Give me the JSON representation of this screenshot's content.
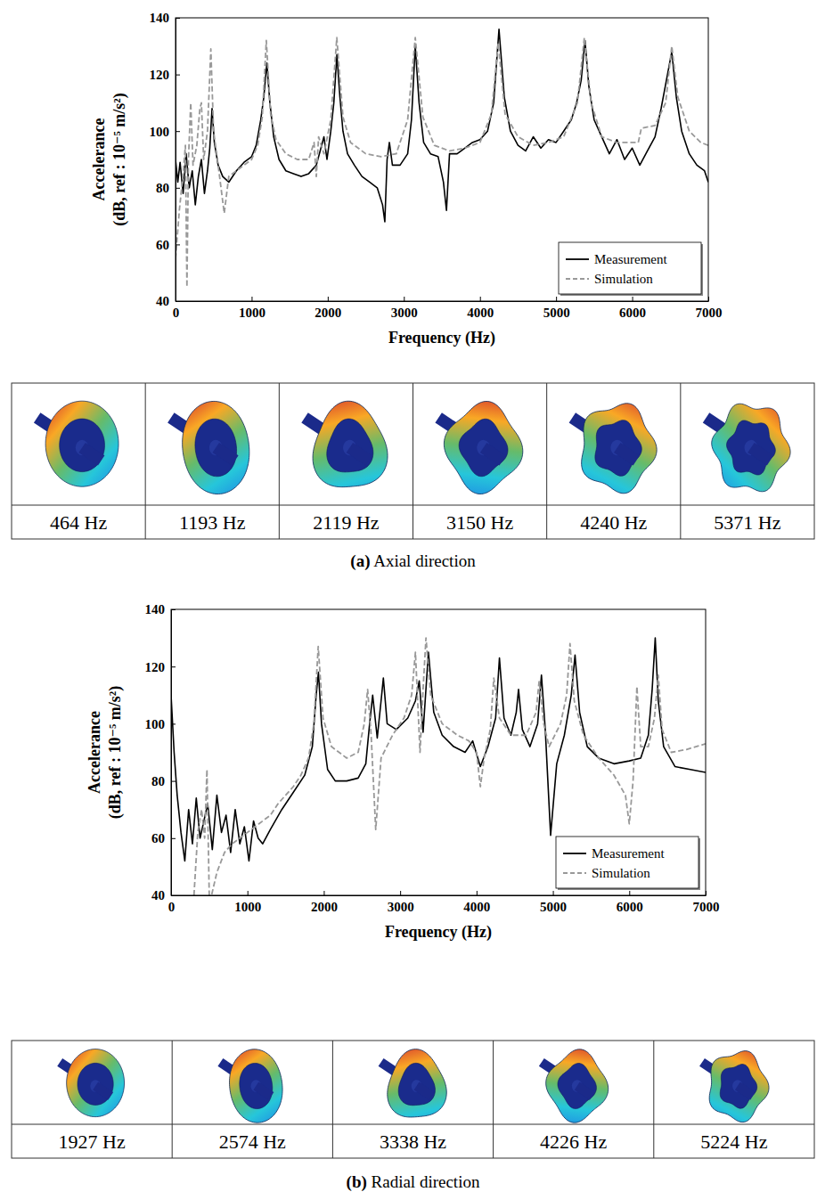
{
  "chart_data": [
    {
      "type": "line",
      "xlabel": "Frequency (Hz)",
      "ylabel": [
        "Accelerance",
        "(dB, ref : 10⁻⁵ m/s²)"
      ],
      "xlim": [
        0,
        7000
      ],
      "xticks": [
        0,
        1000,
        2000,
        3000,
        4000,
        5000,
        6000,
        7000
      ],
      "ylim": [
        40,
        140
      ],
      "yticks": [
        40,
        60,
        80,
        100,
        120,
        140
      ],
      "grid": false,
      "legend": "lower right",
      "series": [
        {
          "name": "Measurement",
          "color": "#000000",
          "line_style": "solid",
          "x": [
            0,
            30,
            60,
            100,
            140,
            180,
            220,
            260,
            300,
            340,
            380,
            420,
            450,
            480,
            510,
            560,
            620,
            700,
            800,
            900,
            1000,
            1060,
            1120,
            1160,
            1200,
            1240,
            1290,
            1360,
            1450,
            1550,
            1650,
            1750,
            1850,
            1900,
            1950,
            1990,
            2040,
            2080,
            2120,
            2160,
            2200,
            2260,
            2350,
            2450,
            2550,
            2650,
            2720,
            2750,
            2780,
            2810,
            2850,
            2950,
            3050,
            3100,
            3150,
            3200,
            3260,
            3350,
            3450,
            3520,
            3560,
            3600,
            3700,
            3800,
            3900,
            4000,
            4100,
            4180,
            4250,
            4320,
            4400,
            4500,
            4600,
            4700,
            4800,
            4900,
            5000,
            5100,
            5200,
            5270,
            5330,
            5380,
            5430,
            5500,
            5600,
            5700,
            5800,
            5900,
            6000,
            6100,
            6200,
            6300,
            6380,
            6450,
            6520,
            6580,
            6650,
            6750,
            6850,
            6950,
            7000
          ],
          "values": [
            90,
            82,
            89,
            78,
            92,
            80,
            86,
            74,
            84,
            90,
            78,
            86,
            94,
            108,
            96,
            88,
            84,
            82,
            86,
            89,
            91,
            95,
            104,
            112,
            124,
            110,
            98,
            90,
            86,
            85,
            84,
            85,
            88,
            93,
            98,
            90,
            100,
            110,
            127,
            112,
            100,
            92,
            88,
            84,
            82,
            80,
            74,
            68,
            90,
            96,
            88,
            88,
            92,
            104,
            130,
            110,
            96,
            92,
            91,
            82,
            72,
            92,
            92,
            94,
            96,
            97,
            100,
            110,
            136,
            112,
            100,
            95,
            93,
            98,
            94,
            97,
            96,
            100,
            104,
            110,
            118,
            132,
            116,
            104,
            98,
            92,
            97,
            90,
            94,
            88,
            93,
            98,
            108,
            118,
            128,
            112,
            100,
            92,
            88,
            86,
            82
          ]
        },
        {
          "name": "Simulation",
          "color": "#999999",
          "line_style": "dashed",
          "x": [
            0,
            50,
            100,
            130,
            150,
            170,
            200,
            230,
            280,
            320,
            340,
            370,
            420,
            464,
            500,
            560,
            640,
            700,
            800,
            900,
            1000,
            1080,
            1140,
            1193,
            1250,
            1320,
            1450,
            1600,
            1750,
            1820,
            1850,
            1880,
            1950,
            2040,
            2119,
            2200,
            2300,
            2500,
            2700,
            2900,
            3050,
            3150,
            3250,
            3400,
            3600,
            3800,
            4000,
            4150,
            4240,
            4330,
            4500,
            4700,
            4900,
            5100,
            5280,
            5371,
            5460,
            5600,
            5800,
            6000,
            6080,
            6120,
            6300,
            6440,
            6520,
            6600,
            6750,
            6900,
            7000
          ],
          "values": [
            55,
            72,
            85,
            95,
            45,
            90,
            110,
            88,
            95,
            108,
            110,
            90,
            100,
            129,
            100,
            88,
            71,
            84,
            86,
            88,
            90,
            95,
            105,
            132,
            106,
            97,
            92,
            90,
            90,
            96,
            84,
            98,
            92,
            104,
            133,
            105,
            96,
            92,
            91,
            92,
            104,
            133,
            105,
            95,
            93,
            94,
            96,
            106,
            131,
            106,
            98,
            95,
            96,
            98,
            110,
            133,
            110,
            98,
            96,
            96,
            96,
            101,
            102,
            110,
            130,
            112,
            100,
            96,
            95
          ]
        }
      ],
      "mode_shapes": [
        "464 Hz",
        "1193 Hz",
        "2119 Hz",
        "3150 Hz",
        "4240 Hz",
        "5371 Hz"
      ],
      "caption_label": "(a)",
      "caption": "Axial direction"
    },
    {
      "type": "line",
      "xlabel": "Frequency (Hz)",
      "ylabel": [
        "Accelerance",
        "(dB, ref : 10⁻⁵ m/s²)"
      ],
      "xlim": [
        0,
        7000
      ],
      "xticks": [
        0,
        1000,
        2000,
        3000,
        4000,
        5000,
        6000,
        7000
      ],
      "ylim": [
        40,
        140
      ],
      "yticks": [
        40,
        60,
        80,
        100,
        120,
        140
      ],
      "grid": false,
      "legend": "lower right",
      "series": [
        {
          "name": "Measurement",
          "color": "#000000",
          "line_style": "solid",
          "x": [
            0,
            40,
            80,
            130,
            180,
            230,
            280,
            330,
            380,
            430,
            480,
            540,
            600,
            660,
            720,
            780,
            840,
            900,
            960,
            1020,
            1080,
            1140,
            1200,
            1300,
            1450,
            1600,
            1750,
            1850,
            1900,
            1930,
            1970,
            2050,
            2150,
            2300,
            2450,
            2550,
            2600,
            2640,
            2700,
            2750,
            2780,
            2830,
            2950,
            3100,
            3200,
            3250,
            3300,
            3370,
            3440,
            3550,
            3700,
            3850,
            3950,
            4050,
            4150,
            4250,
            4300,
            4360,
            4450,
            4520,
            4550,
            4600,
            4700,
            4800,
            4850,
            4900,
            4970,
            5050,
            5150,
            5240,
            5290,
            5350,
            5450,
            5600,
            5800,
            6000,
            6150,
            6250,
            6300,
            6340,
            6380,
            6450,
            6600,
            6800,
            7000
          ],
          "values": [
            110,
            90,
            75,
            62,
            52,
            70,
            58,
            74,
            60,
            66,
            72,
            56,
            75,
            62,
            68,
            55,
            70,
            58,
            64,
            52,
            66,
            60,
            58,
            63,
            70,
            76,
            82,
            92,
            110,
            118,
            100,
            84,
            80,
            80,
            81,
            86,
            100,
            110,
            95,
            108,
            116,
            100,
            98,
            102,
            108,
            115,
            97,
            125,
            104,
            96,
            92,
            90,
            94,
            85,
            92,
            102,
            123,
            102,
            96,
            104,
            112,
            98,
            92,
            100,
            117,
            98,
            61,
            86,
            96,
            110,
            124,
            104,
            92,
            88,
            86,
            87,
            88,
            96,
            112,
            130,
            108,
            92,
            85,
            84,
            83
          ]
        },
        {
          "name": "Simulation",
          "color": "#999999",
          "line_style": "dashed",
          "x": [
            300,
            350,
            400,
            440,
            470,
            500,
            530,
            600,
            700,
            800,
            900,
            1000,
            1100,
            1200,
            1300,
            1400,
            1500,
            1600,
            1700,
            1800,
            1870,
            1927,
            1990,
            2100,
            2300,
            2450,
            2530,
            2574,
            2620,
            2680,
            2750,
            2900,
            3050,
            3150,
            3200,
            3260,
            3300,
            3338,
            3400,
            3550,
            3750,
            3900,
            4000,
            4050,
            4100,
            4180,
            4226,
            4300,
            4450,
            4650,
            4780,
            4820,
            4880,
            4950,
            5100,
            5180,
            5224,
            5280,
            5400,
            5600,
            5800,
            5950,
            6000,
            6050,
            6100,
            6150,
            6250,
            6330,
            6380,
            6430,
            6550,
            6750,
            7000
          ],
          "values": [
            40,
            62,
            70,
            60,
            84,
            40,
            40,
            48,
            55,
            58,
            60,
            62,
            64,
            66,
            68,
            72,
            75,
            78,
            82,
            88,
            100,
            127,
            102,
            92,
            88,
            90,
            100,
            112,
            96,
            63,
            88,
            96,
            102,
            110,
            125,
            90,
            112,
            130,
            110,
            100,
            96,
            94,
            90,
            78,
            88,
            98,
            116,
            102,
            96,
            96,
            104,
            115,
            100,
            92,
            100,
            110,
            128,
            108,
            96,
            88,
            82,
            75,
            65,
            80,
            113,
            92,
            92,
            102,
            117,
            98,
            90,
            91,
            93
          ]
        }
      ],
      "mode_shapes": [
        "1927 Hz",
        "2574 Hz",
        "3338 Hz",
        "4226 Hz",
        "5224 Hz"
      ],
      "caption_label": "(b)",
      "caption": "Radial direction"
    }
  ]
}
